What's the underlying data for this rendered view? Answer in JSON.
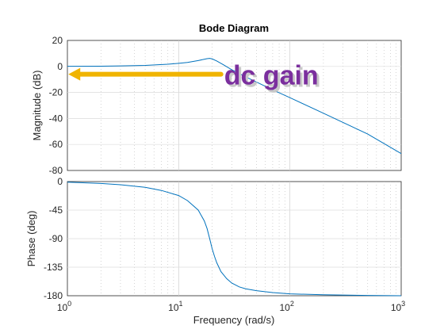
{
  "chart_data": {
    "type": "line",
    "title": "Bode Diagram",
    "xlabel": "Frequency  (rad/s)",
    "xscale": "log",
    "xlim": [
      1,
      1000
    ],
    "x_tick_labels": [
      {
        "x": 1,
        "base": "10",
        "exp": "0"
      },
      {
        "x": 10,
        "base": "10",
        "exp": "1"
      },
      {
        "x": 100,
        "base": "10",
        "exp": "2"
      },
      {
        "x": 1000,
        "base": "10",
        "exp": "3"
      }
    ],
    "grid": true,
    "colors": {
      "line": "#0072bd",
      "arrow": "#f0b400",
      "annotation": "#7b2f9e",
      "annotation_shadow": "#c8c8c8"
    },
    "subplots": [
      {
        "ylabel": "Magnitude (dB)",
        "ylim": [
          -80,
          20
        ],
        "yticks": [
          20,
          0,
          -20,
          -40,
          -60,
          -80
        ],
        "series": [
          {
            "x": [
              1,
              2,
              3,
              5,
              8,
              10,
              12,
              15,
              18,
              19,
              20,
              22,
              25,
              30,
              40,
              50,
              70,
              100,
              200,
              500,
              1000
            ],
            "y": [
              0.1,
              0.2,
              0.4,
              0.8,
              1.7,
              2.4,
              3.1,
              4.5,
              6.0,
              6.2,
              5.8,
              4.2,
              1.5,
              -2.5,
              -8.0,
              -12.0,
              -18.0,
              -24.0,
              -36.0,
              -52.0,
              -67.0
            ]
          }
        ],
        "annotation": {
          "text": "dc gain",
          "x_start": 24,
          "x_end": 1.02,
          "y": -6
        }
      },
      {
        "ylabel": "Phase (deg)",
        "ylim": [
          -180,
          0
        ],
        "yticks": [
          0,
          -45,
          -90,
          -135,
          -180
        ],
        "series": [
          {
            "x": [
              1,
              2,
              3,
              5,
              7,
              10,
              12,
              15,
              17,
              18,
              19,
              20,
              21,
              22,
              24,
              27,
              30,
              35,
              40,
              50,
              70,
              100,
              200,
              500,
              1000
            ],
            "y": [
              -1,
              -3,
              -5,
              -9,
              -14,
              -22,
              -30,
              -45,
              -62,
              -74,
              -90,
              -106,
              -118,
              -128,
              -142,
              -153,
              -160,
              -166,
              -169,
              -172,
              -175,
              -177,
              -178.5,
              -179.5,
              -180
            ]
          }
        ]
      }
    ]
  }
}
